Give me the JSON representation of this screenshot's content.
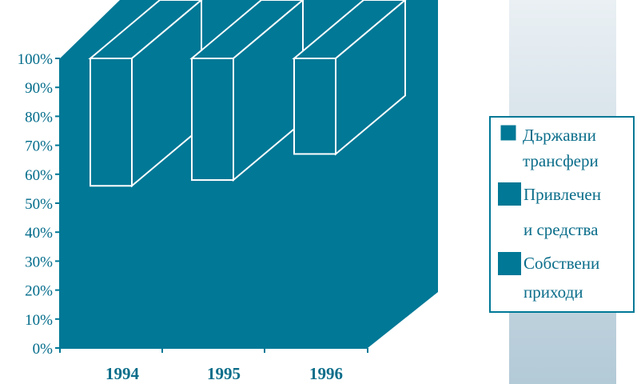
{
  "chart_data": {
    "type": "bar",
    "stacked": true,
    "three_d": true,
    "percent_stacked": true,
    "categories": [
      "1994",
      "1995",
      "1996"
    ],
    "series": [
      {
        "name_lines": [
          "Държавни",
          "трансфери"
        ],
        "values": [
          44,
          42,
          33
        ]
      },
      {
        "name_lines": [
          "Привлечен",
          "и средства"
        ],
        "values": [
          0,
          0,
          0
        ]
      },
      {
        "name_lines": [
          "Собствени",
          "приходи"
        ],
        "values": [
          56,
          58,
          67
        ]
      }
    ],
    "yticks": [
      "0%",
      "10%",
      "20%",
      "30%",
      "40%",
      "50%",
      "60%",
      "70%",
      "80%",
      "90%",
      "100%"
    ],
    "ylim": [
      0,
      100
    ],
    "legend_position": "right",
    "colors": {
      "teal": "#007896",
      "white": "#ffffff",
      "label": "#0a6d8a",
      "legend_panel_top": "#e9eff3",
      "legend_panel_bottom": "#b3cad7"
    }
  }
}
